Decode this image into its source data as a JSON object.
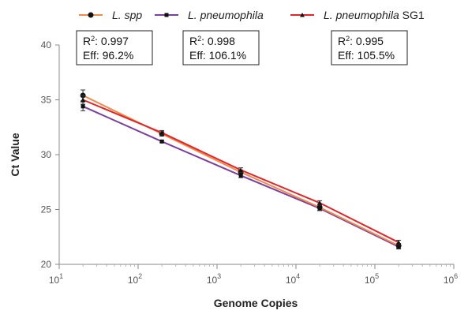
{
  "chart_data": {
    "type": "line",
    "xlabel": "Genome Copies",
    "ylabel": "Ct Value",
    "xscale": "log",
    "xlim": [
      10,
      1000000
    ],
    "ylim": [
      20,
      40
    ],
    "x_ticks": [
      {
        "base": "10",
        "exp": "1"
      },
      {
        "base": "10",
        "exp": "2"
      },
      {
        "base": "10",
        "exp": "3"
      },
      {
        "base": "10",
        "exp": "4"
      },
      {
        "base": "10",
        "exp": "5"
      },
      {
        "base": "10",
        "exp": "6"
      }
    ],
    "y_ticks": [
      "20",
      "25",
      "30",
      "35",
      "40"
    ],
    "x": [
      20,
      200,
      2000,
      20000,
      200000
    ],
    "legend_position": "top",
    "series": [
      {
        "name_italic": "L. spp",
        "name_suffix": "",
        "color": "#f08a4b",
        "marker": "circle",
        "values": [
          35.4,
          31.9,
          28.4,
          25.2,
          21.7
        ],
        "errors": [
          0.5,
          0.2,
          0.2,
          0.3,
          0.2
        ]
      },
      {
        "name_italic": "L. pneumophila",
        "name_suffix": "",
        "color": "#7b3fa0",
        "marker": "square",
        "values": [
          34.4,
          31.2,
          28.1,
          25.1,
          21.6
        ],
        "errors": [
          0.4,
          0.1,
          0.2,
          0.2,
          0.2
        ]
      },
      {
        "name_italic": "L. pneumophila",
        "name_suffix": " SG1",
        "color": "#e0262b",
        "marker": "triangle",
        "values": [
          35.0,
          32.0,
          28.6,
          25.6,
          22.0
        ],
        "errors": [
          0.4,
          0.2,
          0.2,
          0.2,
          0.2
        ]
      }
    ],
    "annotations": [
      {
        "r2_label": "R",
        "r2_sup": "2",
        "r2_value": ": 0.997",
        "eff": "Eff: 96.2%"
      },
      {
        "r2_label": "R",
        "r2_sup": "2",
        "r2_value": ": 0.998",
        "eff": "Eff: 106.1%"
      },
      {
        "r2_label": "R",
        "r2_sup": "2",
        "r2_value": ": 0.995",
        "eff": "Eff: 105.5%"
      }
    ]
  }
}
